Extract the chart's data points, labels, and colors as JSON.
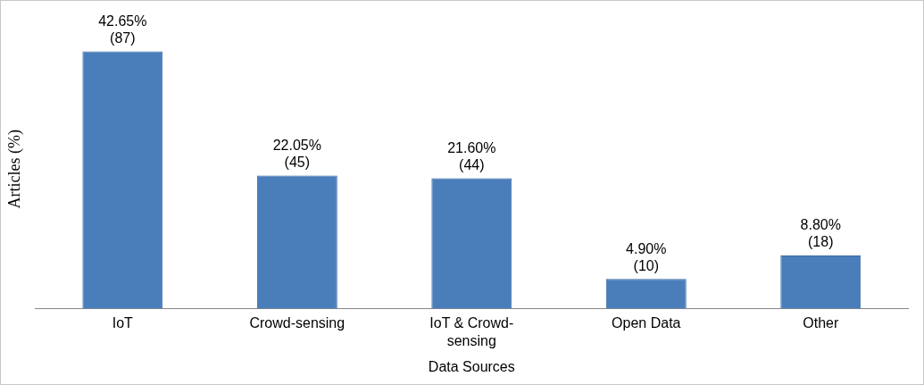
{
  "chart_data": {
    "type": "bar",
    "xlabel": "Data Sources",
    "ylabel": "Articles (%)",
    "categories": [
      "IoT",
      "Crowd-sensing",
      "IoT & Crowd-sensing",
      "Open Data",
      "Other"
    ],
    "values": [
      42.65,
      22.05,
      21.6,
      4.9,
      8.8
    ],
    "value_labels": [
      "42.65%\n(87)",
      "22.05%\n(45)",
      "21.60%\n(44)",
      "4.90%\n(10)",
      "8.80%\n(18)"
    ],
    "color": "#4a7ebb",
    "grid": false,
    "legend": false
  }
}
